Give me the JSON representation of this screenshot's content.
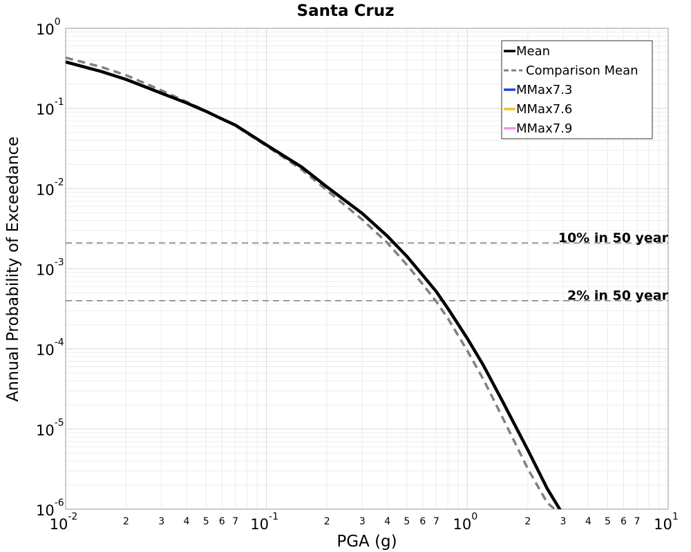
{
  "chart_data": {
    "type": "line",
    "title": "Santa Cruz",
    "xlabel": "PGA (g)",
    "ylabel": "Annual Probability of Exceedance",
    "x_scale": "log",
    "y_scale": "log",
    "xlim": [
      0.01,
      10
    ],
    "ylim": [
      1e-06,
      1
    ],
    "grid": true,
    "x_major_ticks": [
      {
        "value": 0.01,
        "base": "10",
        "exp": "-2"
      },
      {
        "value": 0.1,
        "base": "10",
        "exp": "-1"
      },
      {
        "value": 1,
        "base": "10",
        "exp": "0"
      },
      {
        "value": 10,
        "base": "10",
        "exp": "1"
      }
    ],
    "x_minor_labels": [
      "2",
      "3",
      "4",
      "5",
      "6",
      "7"
    ],
    "y_major_ticks": [
      {
        "value": 1,
        "base": "10",
        "exp": "0"
      },
      {
        "value": 0.1,
        "base": "10",
        "exp": "-1"
      },
      {
        "value": 0.01,
        "base": "10",
        "exp": "-2"
      },
      {
        "value": 0.001,
        "base": "10",
        "exp": "-3"
      },
      {
        "value": 0.0001,
        "base": "10",
        "exp": "-4"
      },
      {
        "value": 1e-05,
        "base": "10",
        "exp": "-5"
      },
      {
        "value": 1e-06,
        "base": "10",
        "exp": "-6"
      }
    ],
    "legend_position": "top-right",
    "legend": [
      {
        "label": "Mean",
        "color": "#000000",
        "style": "solid"
      },
      {
        "label": "Comparison Mean",
        "color": "#808080",
        "style": "dashed"
      },
      {
        "label": "MMax7.3",
        "color": "#1f3fe0",
        "style": "solid"
      },
      {
        "label": "MMax7.6",
        "color": "#f0c419",
        "style": "solid"
      },
      {
        "label": "MMax7.9",
        "color": "#f590e8",
        "style": "solid"
      }
    ],
    "series": [
      {
        "name": "Mean",
        "color": "#000000",
        "style": "solid",
        "x": [
          0.01,
          0.015,
          0.02,
          0.03,
          0.04,
          0.05,
          0.06,
          0.07,
          0.1,
          0.15,
          0.2,
          0.3,
          0.4,
          0.5,
          0.6,
          0.7,
          0.8,
          1.0,
          1.2,
          1.5,
          2.0,
          2.5,
          3.0
        ],
        "y": [
          0.38,
          0.29,
          0.23,
          0.155,
          0.117,
          0.092,
          0.074,
          0.062,
          0.035,
          0.0185,
          0.0105,
          0.0049,
          0.00255,
          0.00143,
          0.00083,
          0.00052,
          0.00032,
          0.000135,
          6.3e-05,
          2.2e-05,
          5.5e-06,
          1.8e-06,
          8.5e-07
        ]
      },
      {
        "name": "Comparison Mean",
        "color": "#808080",
        "style": "dashed",
        "x": [
          0.01,
          0.015,
          0.02,
          0.03,
          0.04,
          0.05,
          0.06,
          0.07,
          0.1,
          0.15,
          0.2,
          0.3,
          0.4,
          0.5,
          0.6,
          0.7,
          0.8,
          1.0,
          1.2,
          1.5,
          2.0,
          2.5,
          2.8
        ],
        "y": [
          0.43,
          0.33,
          0.26,
          0.168,
          0.121,
          0.093,
          0.074,
          0.061,
          0.034,
          0.0172,
          0.0095,
          0.0041,
          0.0021,
          0.00112,
          0.00064,
          0.00039,
          0.00024,
          9.5e-05,
          4.2e-05,
          1.38e-05,
          3.2e-06,
          1.2e-06,
          9.5e-07
        ]
      }
    ],
    "reference_lines": [
      {
        "label": "10% in 50 year",
        "y": 0.0021
      },
      {
        "label": "2% in 50 year",
        "y": 0.0004
      }
    ]
  }
}
